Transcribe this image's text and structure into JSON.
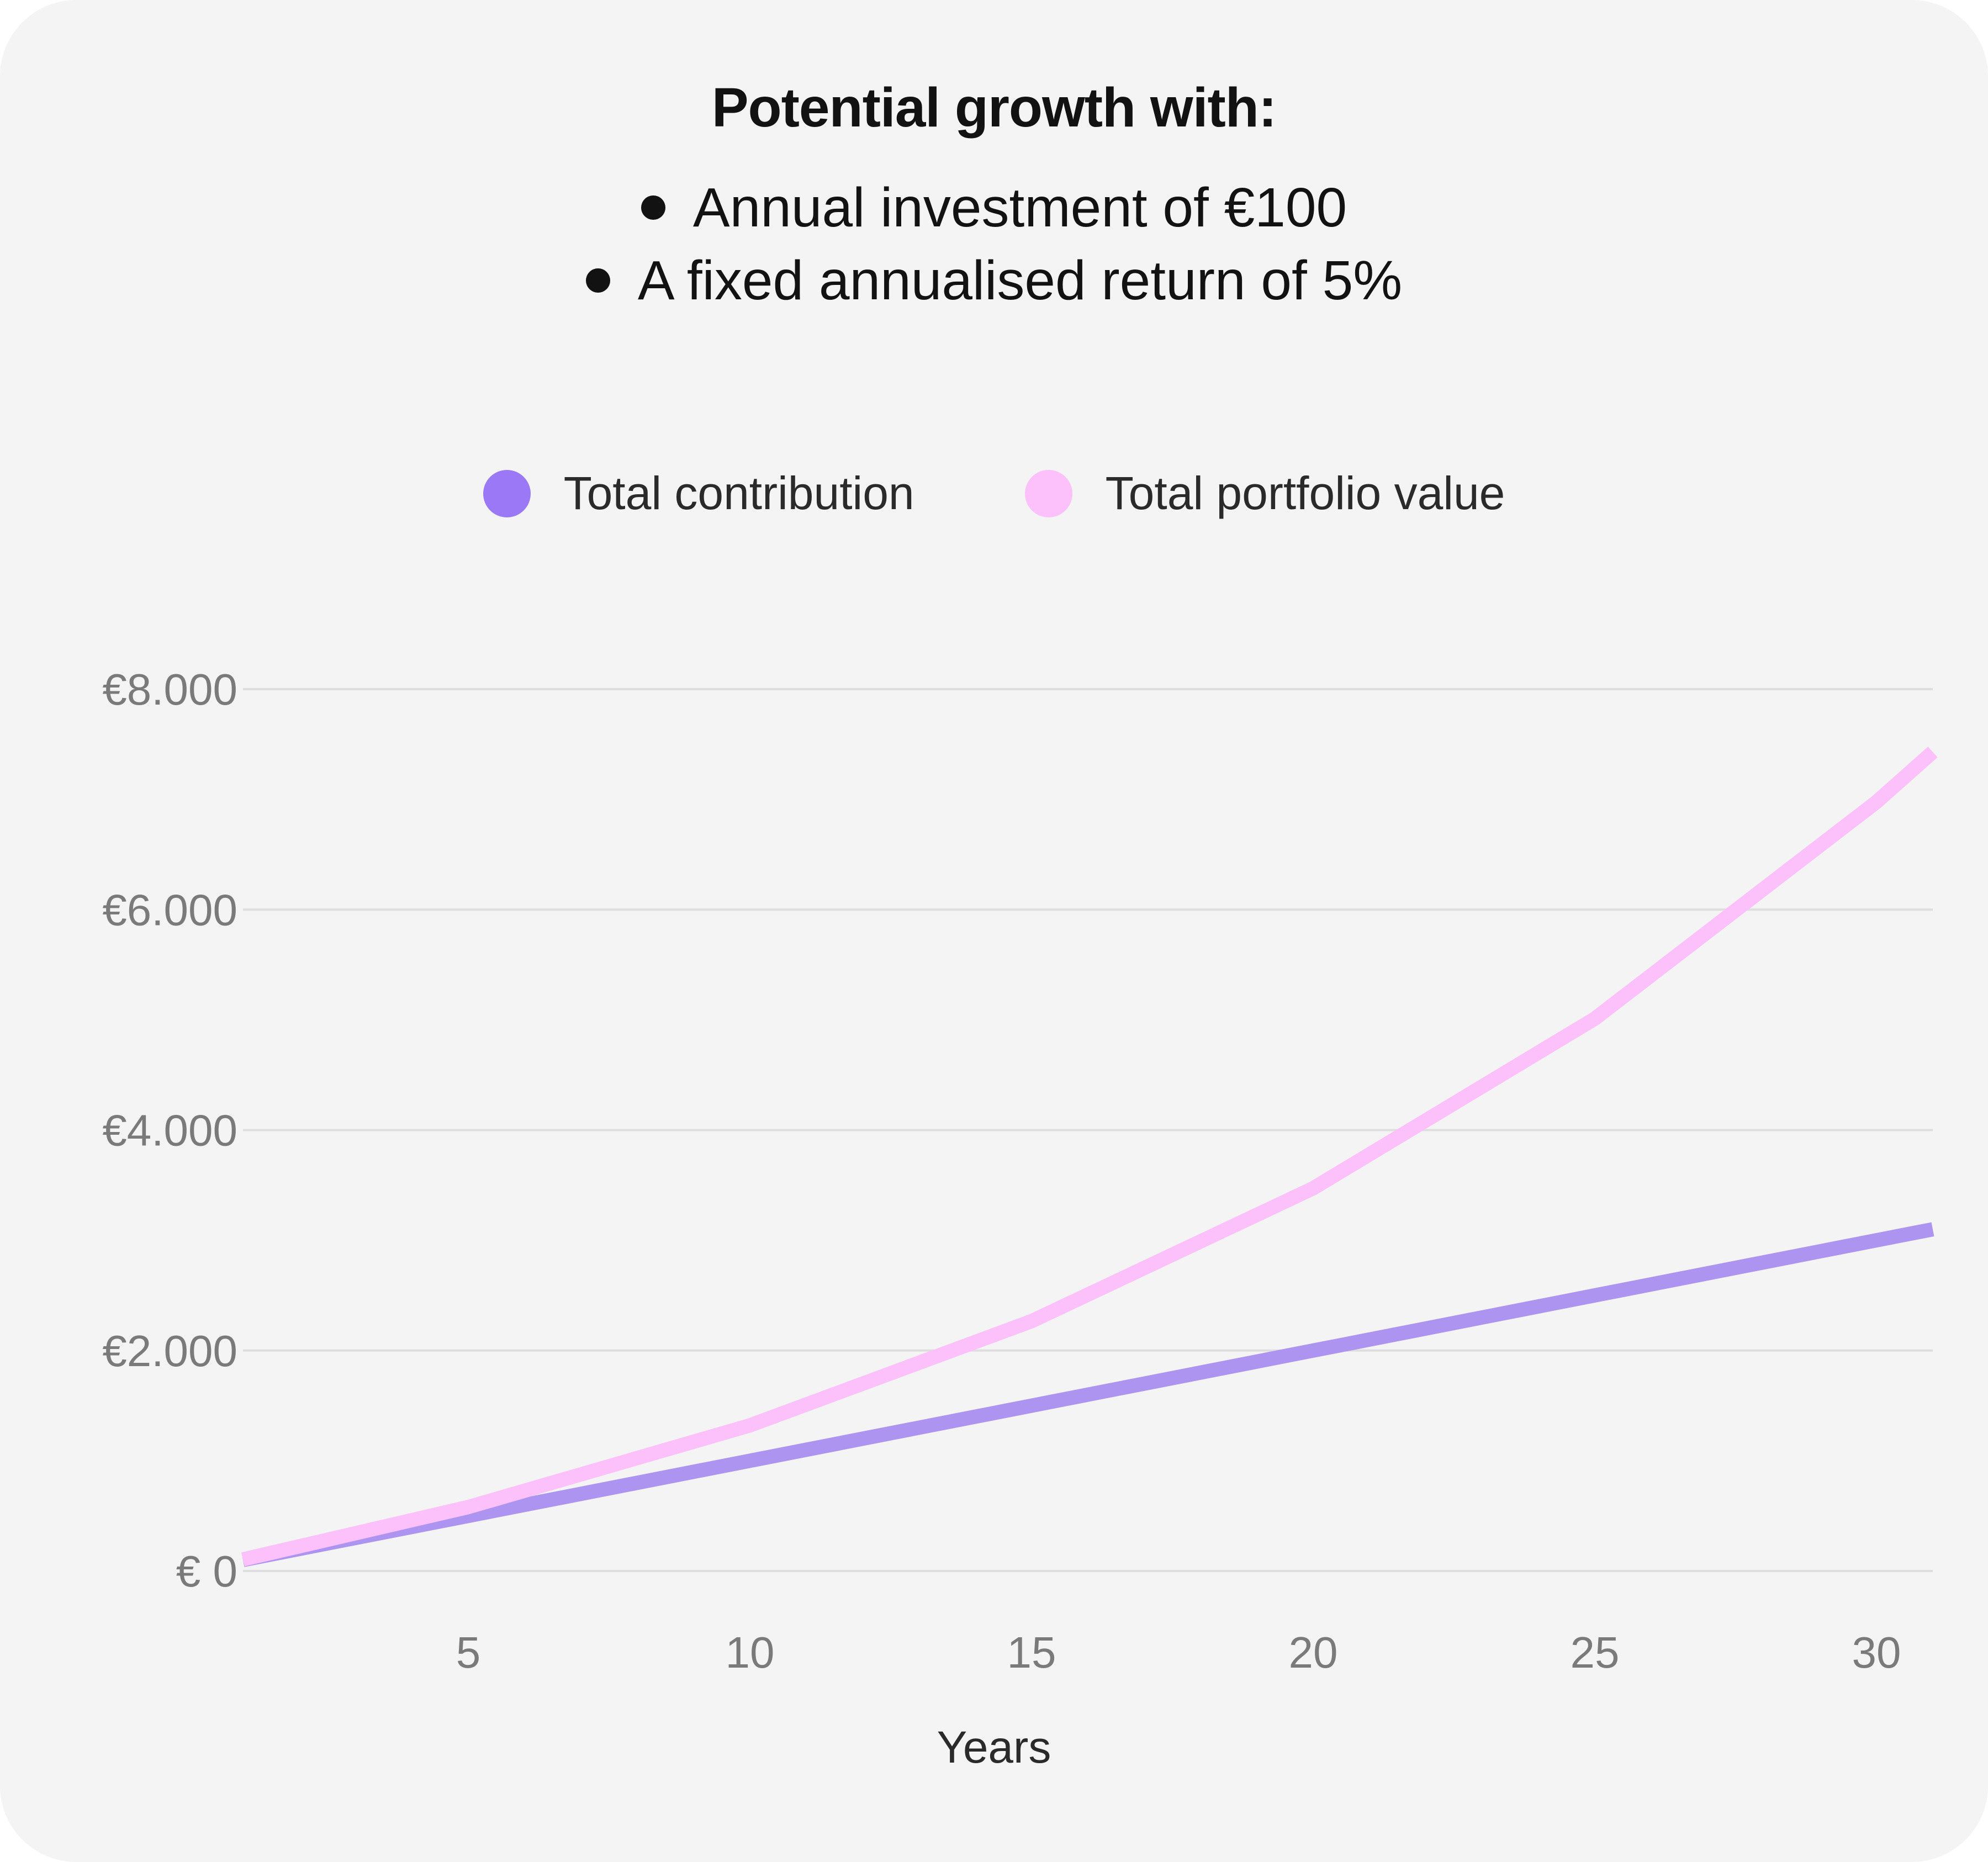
{
  "chart_data": {
    "type": "line",
    "title": "Potential growth with:",
    "subtitle": [
      "Annual investment of €100",
      "A fixed annualised return of 5%"
    ],
    "xlabel": "Years",
    "ylabel": "",
    "xlim": [
      1,
      31
    ],
    "ylim": [
      0,
      8000
    ],
    "x_ticks": [
      5,
      10,
      15,
      20,
      25,
      30
    ],
    "y_ticks": [
      0,
      2000,
      4000,
      6000,
      8000
    ],
    "y_tick_labels": [
      "€ 0",
      "€2.000",
      "€4.000",
      "€6.000",
      "€8.000"
    ],
    "grid": "horizontal",
    "legend_position": "top-center",
    "series": [
      {
        "name": "Total contribution",
        "color": "#9b78f5",
        "line_color": "#ad94f0",
        "x": [
          1,
          5,
          10,
          15,
          20,
          25,
          30,
          31
        ],
        "values": [
          100,
          500,
          1000,
          1500,
          2000,
          2500,
          3000,
          3100
        ]
      },
      {
        "name": "Total portfolio value",
        "color": "#fcc0fa",
        "line_color": "#fcc0fa",
        "x": [
          1,
          5,
          10,
          15,
          20,
          25,
          30,
          31
        ],
        "values": [
          105,
          580,
          1321,
          2266,
          3472,
          5011,
          6976,
          7430
        ]
      }
    ]
  }
}
